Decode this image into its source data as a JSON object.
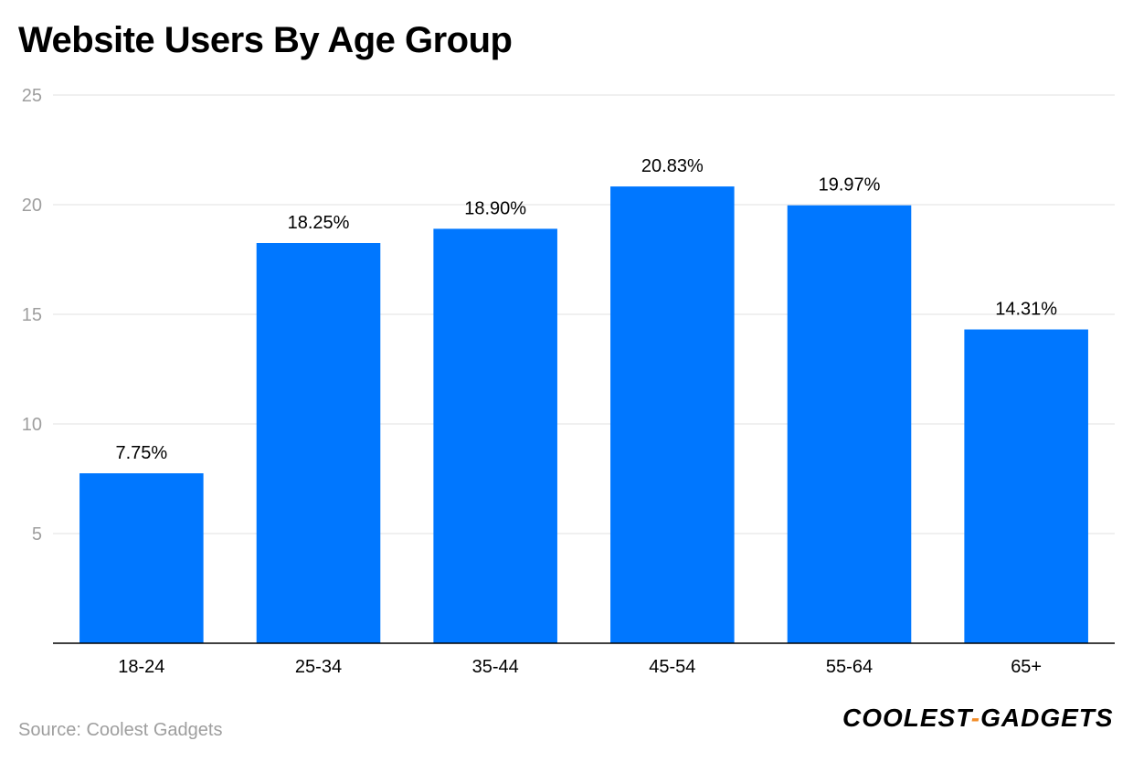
{
  "title": "Website Users By Age Group",
  "source": "Source: Coolest Gadgets",
  "logo": {
    "left": "COOLEST",
    "dash": "-",
    "right": "GADGETS"
  },
  "colors": {
    "bar": "#0077ff",
    "grid": "#e0e0e0",
    "axis": "#000000",
    "tick": "#9e9e9e",
    "dash": "#f28c28"
  },
  "chart_data": {
    "type": "bar",
    "title": "Website Users By Age Group",
    "categories": [
      "18-24",
      "25-34",
      "35-44",
      "45-54",
      "55-64",
      "65+"
    ],
    "values": [
      7.75,
      18.25,
      18.9,
      20.83,
      19.97,
      14.31
    ],
    "value_labels": [
      "7.75%",
      "18.25%",
      "18.90%",
      "20.83%",
      "19.97%",
      "14.31%"
    ],
    "ylim": [
      0,
      25
    ],
    "yticks": [
      "5",
      "10",
      "15",
      "20",
      "25"
    ],
    "xlabel": "",
    "ylabel": "",
    "grid": true
  }
}
